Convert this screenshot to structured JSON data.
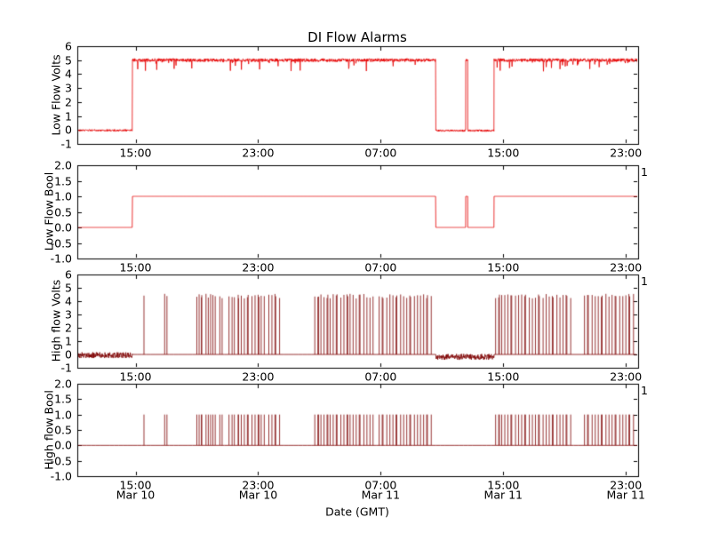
{
  "chart_data": {
    "type": "line",
    "title": "DI Flow Alarms",
    "xlabel": "Date (GMT)",
    "x_unit": "hours since Mar 10 00:00 GMT",
    "x_range_hours": [
      11.2,
      47.8
    ],
    "grid": false,
    "legend": "none",
    "x_ticks": [
      {
        "hour": 15,
        "time_label": "15:00",
        "date_label": "Mar 10"
      },
      {
        "hour": 23,
        "time_label": "23:00",
        "date_label": "Mar 10"
      },
      {
        "hour": 31,
        "time_label": "07:00",
        "date_label": "Mar 11"
      },
      {
        "hour": 39,
        "time_label": "15:00",
        "date_label": "Mar 11"
      },
      {
        "hour": 47,
        "time_label": "23:00",
        "date_label": "Mar 11"
      }
    ],
    "high_flow_spike_times": [
      15.55,
      16.9,
      17.05,
      19.0,
      19.15,
      19.3,
      19.32,
      19.6,
      19.75,
      19.9,
      20.05,
      20.2,
      20.5,
      20.65,
      21.1,
      21.3,
      21.45,
      21.7,
      21.72,
      21.9,
      22.1,
      22.3,
      22.35,
      22.6,
      22.8,
      23.0,
      23.05,
      23.2,
      23.4,
      23.7,
      23.9,
      24.1,
      24.15,
      24.4,
      26.7,
      26.9,
      26.95,
      27.1,
      27.3,
      27.5,
      27.55,
      27.7,
      27.9,
      28.1,
      28.15,
      28.4,
      28.6,
      28.8,
      28.85,
      29.0,
      29.2,
      29.4,
      29.6,
      29.65,
      29.9,
      30.1,
      30.3,
      30.5,
      30.9,
      31.1,
      31.15,
      31.4,
      31.6,
      31.8,
      32.0,
      32.05,
      32.3,
      32.5,
      32.7,
      32.9,
      32.95,
      33.2,
      33.4,
      33.6,
      33.8,
      34.0,
      34.05,
      34.3,
      38.5,
      38.7,
      38.75,
      38.9,
      39.1,
      39.3,
      39.5,
      39.55,
      39.8,
      40.0,
      40.2,
      40.4,
      40.45,
      40.7,
      40.9,
      41.1,
      41.3,
      41.35,
      41.6,
      41.8,
      42.0,
      42.2,
      42.25,
      42.5,
      42.7,
      42.9,
      43.1,
      43.15,
      43.4,
      44.3,
      44.5,
      44.55,
      44.8,
      45.0,
      45.2,
      45.4,
      45.45,
      45.7,
      45.9,
      46.1,
      46.3,
      46.35,
      46.6,
      46.8,
      47.0,
      47.2,
      47.25,
      47.5
    ],
    "subplots": [
      {
        "name": "low-flow-volts",
        "ylabel": "Low Flow Volts",
        "ylim": [
          -1,
          6
        ],
        "ytick_values": [
          -1,
          0,
          1,
          2,
          3,
          4,
          5,
          6
        ],
        "ytick_labels": [
          "-1",
          "0",
          "1",
          "2",
          "3",
          "4",
          "5",
          "6"
        ],
        "right_label": "",
        "color": "#e60000",
        "line_width": 0.8,
        "segments": [
          {
            "start": 11.2,
            "end": 14.8,
            "level": -0.03,
            "noise": 0.07
          },
          {
            "start": 14.8,
            "end": 34.6,
            "level": 5.0,
            "noise": 0.12,
            "dropouts": true
          },
          {
            "start": 34.6,
            "end": 36.55,
            "level": -0.05,
            "noise": 0.07
          },
          {
            "start": 36.55,
            "end": 36.68,
            "level": 5.0,
            "noise": 0.1
          },
          {
            "start": 36.68,
            "end": 38.4,
            "level": -0.05,
            "noise": 0.07
          },
          {
            "start": 38.4,
            "end": 47.8,
            "level": 5.0,
            "noise": 0.12,
            "dropouts": true
          }
        ]
      },
      {
        "name": "low-flow-bool",
        "ylabel": "Low Flow Bool",
        "ylim": [
          -1,
          2
        ],
        "ytick_values": [
          -1,
          -0.5,
          0,
          0.5,
          1,
          1.5,
          2
        ],
        "ytick_labels": [
          "-1.0",
          "-0.5",
          "0.0",
          "0.5",
          "1.0",
          "1.5",
          "2.0"
        ],
        "right_label": "1",
        "color": "#e60000",
        "line_width": 0.8,
        "segments": [
          {
            "start": 11.2,
            "end": 14.8,
            "level": 0
          },
          {
            "start": 14.8,
            "end": 34.6,
            "level": 1
          },
          {
            "start": 34.6,
            "end": 36.55,
            "level": 0
          },
          {
            "start": 36.55,
            "end": 36.68,
            "level": 1
          },
          {
            "start": 36.68,
            "end": 38.4,
            "level": 0
          },
          {
            "start": 38.4,
            "end": 47.8,
            "level": 1
          }
        ]
      },
      {
        "name": "high-flow-volts",
        "ylabel": "High flow Volts",
        "ylim": [
          -1,
          6
        ],
        "ytick_values": [
          -1,
          0,
          1,
          2,
          3,
          4,
          5,
          6
        ],
        "ytick_labels": [
          "-1",
          "0",
          "1",
          "2",
          "3",
          "4",
          "5",
          "6"
        ],
        "right_label": "1",
        "color": "#7d0000",
        "line_width": 0.8,
        "baseline_segments": [
          {
            "start": 11.2,
            "end": 14.8,
            "level": -0.05,
            "noise": 0.22
          },
          {
            "start": 14.8,
            "end": 34.6,
            "level": 0,
            "noise": 0
          },
          {
            "start": 34.6,
            "end": 38.4,
            "level": -0.18,
            "noise": 0.22
          },
          {
            "start": 38.4,
            "end": 47.8,
            "level": 0,
            "noise": 0
          }
        ],
        "spike_base": 0,
        "spike_height": 4.55,
        "spike_jitter": 0.35
      },
      {
        "name": "high-flow-bool",
        "ylabel": "High flow Bool",
        "ylim": [
          -1,
          2
        ],
        "ytick_values": [
          -1,
          -0.5,
          0,
          0.5,
          1,
          1.5,
          2
        ],
        "ytick_labels": [
          "-1.0",
          "-0.5",
          "0.0",
          "0.5",
          "1.0",
          "1.5",
          "2.0"
        ],
        "right_label": "1",
        "color": "#7d0000",
        "line_width": 0.8,
        "baseline_segments": [
          {
            "start": 11.2,
            "end": 47.8,
            "level": 0,
            "noise": 0
          }
        ],
        "spike_base": 0,
        "spike_height": 1.0,
        "spike_jitter": 0
      }
    ]
  }
}
